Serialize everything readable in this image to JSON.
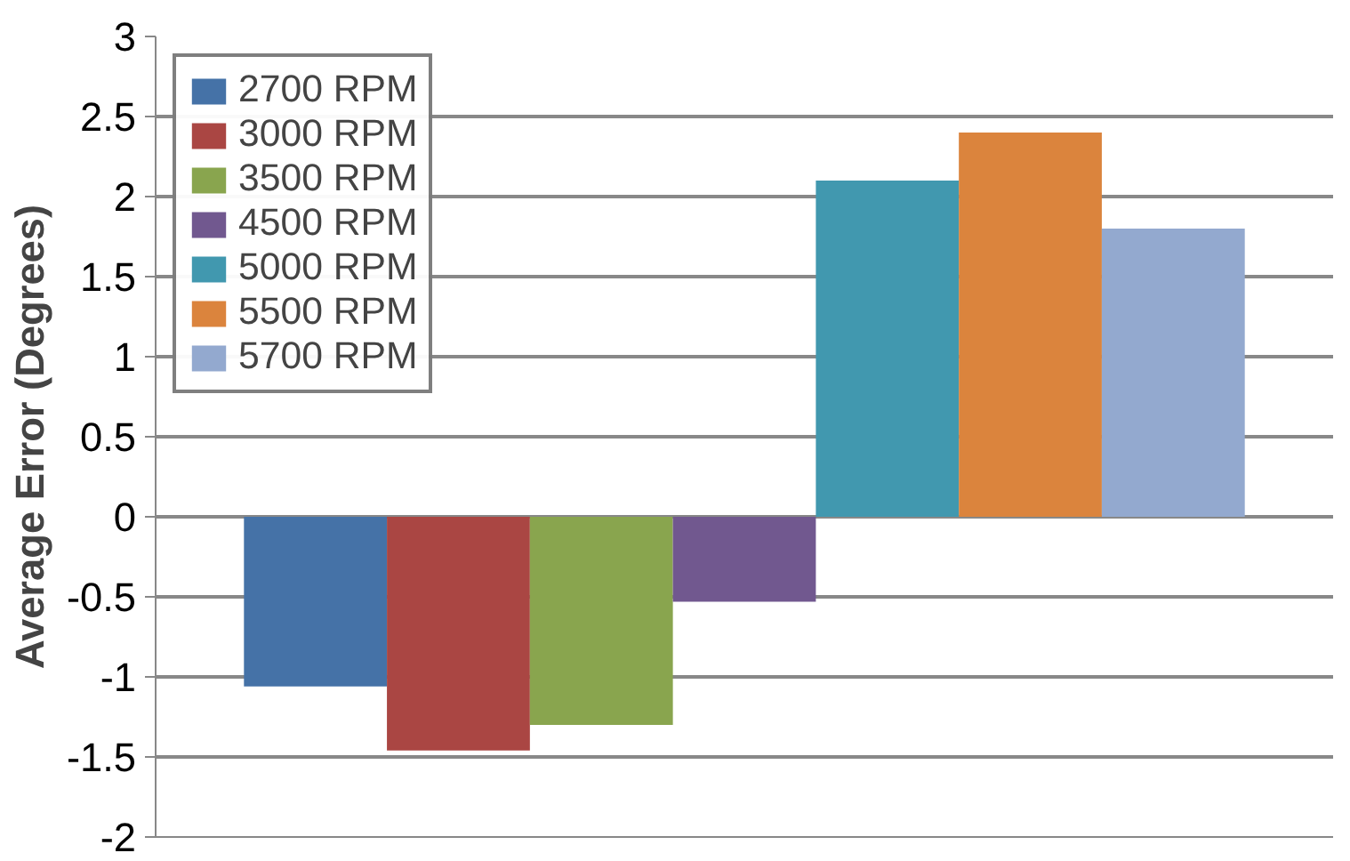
{
  "chart_data": {
    "type": "bar",
    "ylabel": "Average Error (Degrees)",
    "categories": [
      null
    ],
    "series": [
      {
        "name": "2700 RPM",
        "color": "#4572a7",
        "values": [
          -1.06
        ]
      },
      {
        "name": "3000 RPM",
        "color": "#aa4643",
        "values": [
          -1.46
        ]
      },
      {
        "name": "3500 RPM",
        "color": "#89a54e",
        "values": [
          -1.3
        ]
      },
      {
        "name": "4500 RPM",
        "color": "#71588f",
        "values": [
          -0.53
        ]
      },
      {
        "name": "5000 RPM",
        "color": "#4198af",
        "values": [
          2.1
        ]
      },
      {
        "name": "5500 RPM",
        "color": "#db843d",
        "values": [
          2.4
        ]
      },
      {
        "name": "5700 RPM",
        "color": "#93a9cf",
        "values": [
          1.8
        ]
      }
    ],
    "ylim": [
      -2,
      3
    ],
    "yticks": [
      -2,
      -1.5,
      -1,
      -0.5,
      0,
      0.5,
      1,
      1.5,
      2,
      2.5,
      3
    ],
    "grid": "y",
    "legend": "top left"
  }
}
